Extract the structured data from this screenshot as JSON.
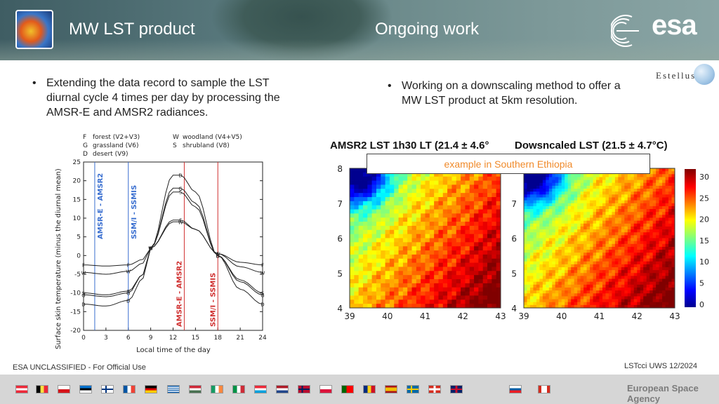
{
  "header": {
    "title": "MW LST product",
    "subtitle": "Ongoing work",
    "brand": "esa"
  },
  "partner_logo": "Estellus",
  "left": {
    "bullet": "Extending the data record to sample the LST diurnal cycle 4 times per day by processing the AMSR-E and AMSR2 radiances."
  },
  "right": {
    "bullet": "Working on a downscaling method to offer a MW LST product at 5km resolution."
  },
  "diurnal_plot": {
    "legend": [
      {
        "symbol": "F",
        "label": "forest (V2+V3)"
      },
      {
        "symbol": "G",
        "label": "grassland (V6)"
      },
      {
        "symbol": "D",
        "label": "desert (V9)"
      },
      {
        "symbol": "W",
        "label": "woodland (V4+V5)"
      },
      {
        "symbol": "S",
        "label": "shrubland (V8)"
      }
    ],
    "ylabel": "Surface skin temperature (minus the diurnal mean)",
    "xlabel": "Local time of the day",
    "xticks": [
      "0",
      "3",
      "6",
      "9",
      "12",
      "15",
      "18",
      "21",
      "24"
    ],
    "yticks": [
      "25",
      "20",
      "15",
      "10",
      "5",
      "0",
      "-5",
      "-10",
      "-15",
      "-20"
    ],
    "overpasses": [
      {
        "label": "AMSR-E - AMSR2",
        "time": "1.5",
        "color": "#3a6fd0"
      },
      {
        "label": "SSM/I - SSMIS",
        "time": "6",
        "color": "#3a6fd0"
      },
      {
        "label": "AMSR-E - AMSR2",
        "time": "13.5",
        "color": "#d03030"
      },
      {
        "label": "SSM/I - SSMIS",
        "time": "18",
        "color": "#d03030"
      }
    ]
  },
  "maps": {
    "caption": "example in Southern Ethiopia",
    "left_title": "AMSR2 LST 1h30 LT (21.4 ± 4.6°",
    "right_title": "Dowsncaled LST (21.5 ± 4.7°C)",
    "lat_ticks": [
      "8",
      "7",
      "6",
      "5",
      "4"
    ],
    "lon_ticks": [
      "39",
      "40",
      "41",
      "42",
      "43"
    ],
    "colorbar_ticks": [
      "30",
      "25",
      "20",
      "15",
      "10",
      "5",
      "0"
    ]
  },
  "footer": {
    "classification": "ESA UNCLASSIFIED - For Official Use",
    "event": "LSTcci UWS 12/2024",
    "agency": "European Space Agency"
  },
  "flags": [
    "Austria",
    "Belgium",
    "Czech Republic",
    "Estonia",
    "Finland",
    "France",
    "Germany",
    "Greece",
    "Hungary",
    "Ireland",
    "Italy",
    "Luxembourg",
    "Netherlands",
    "Norway",
    "Poland",
    "Portugal",
    "Romania",
    "Spain",
    "Sweden",
    "Switzerland",
    "United Kingdom",
    "Slovenia",
    "Canada"
  ],
  "chart_data": {
    "type": "line",
    "title": "",
    "xlabel": "Local time of the day",
    "ylabel": "Surface skin temperature (minus the diurnal mean)",
    "xlim": [
      0,
      24
    ],
    "ylim": [
      -20,
      25
    ],
    "x": [
      0,
      3,
      6,
      8,
      9,
      12,
      13,
      15,
      18,
      21,
      24
    ],
    "series": [
      {
        "name": "forest (V2+V3)",
        "symbol": "F",
        "values": [
          -2.5,
          -2.8,
          -2.5,
          -1,
          2,
          9.5,
          9.5,
          7,
          0.5,
          -1.8,
          -2.5
        ]
      },
      {
        "name": "grassland (V6)",
        "symbol": "G",
        "values": [
          -10.5,
          -11,
          -10,
          -5,
          2,
          18,
          18,
          14,
          0,
          -7,
          -10.5
        ]
      },
      {
        "name": "desert (V9)",
        "symbol": "D",
        "values": [
          -13,
          -13.5,
          -12,
          -6,
          2,
          21.5,
          21.5,
          17,
          0,
          -9,
          -13
        ]
      },
      {
        "name": "woodland (V4+V5)",
        "symbol": "W",
        "values": [
          -4.5,
          -5,
          -4.2,
          -2,
          2,
          9,
          9,
          7,
          0.5,
          -3,
          -4.5
        ]
      },
      {
        "name": "shrubland (V8)",
        "symbol": "S",
        "values": [
          -10,
          -10.5,
          -9.5,
          -5,
          2,
          17,
          17,
          13,
          0,
          -6.5,
          -10
        ]
      }
    ]
  }
}
